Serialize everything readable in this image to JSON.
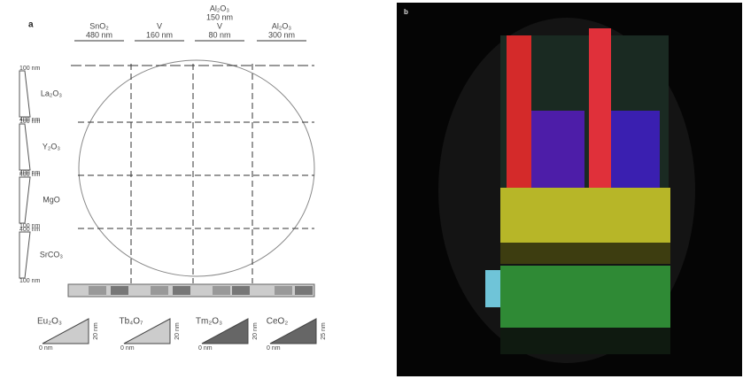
{
  "panel_a": {
    "label": "a",
    "top_labels": [
      [
        "SnO₂",
        "480 nm"
      ],
      [
        "V",
        "160 nm"
      ],
      [
        "Al₂O₃",
        "150 nm",
        "V",
        "80 nm"
      ],
      [
        "Al₂O₃",
        "300 nm"
      ]
    ],
    "left_gradients": [
      {
        "top": "100 nm",
        "material": "La₂O₃",
        "bottom": "400 nm"
      },
      {
        "top": "100 nm",
        "material": "Y₂O₃",
        "bottom": "400 nm"
      },
      {
        "top": "400 nm",
        "material": "MgO",
        "bottom": "100 nm"
      },
      {
        "top": "400 nm",
        "material": "SrCO₃",
        "bottom": "100 nm"
      }
    ],
    "wedges": [
      {
        "material": "Eu₂O₃",
        "max": "20 nm",
        "min": "0 nm"
      },
      {
        "material": "Tb₄O₇",
        "max": "20 nm",
        "min": "0 nm"
      },
      {
        "material": "Tm₂O₃",
        "max": "20 nm",
        "min": "0 nm"
      },
      {
        "material": "CeO₂",
        "max": "25 nm",
        "min": "0 nm"
      }
    ]
  },
  "panel_b": {
    "label": "b"
  }
}
